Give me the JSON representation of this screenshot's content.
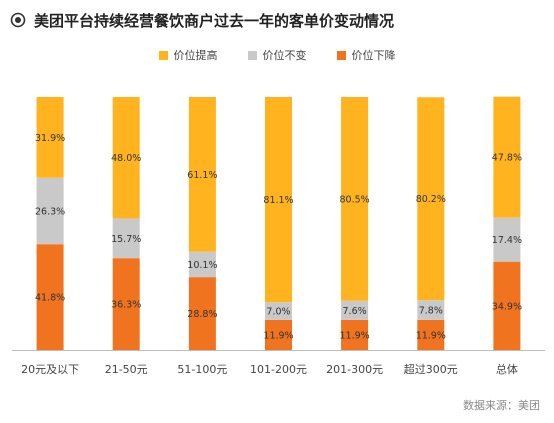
{
  "title": "美团平台持续经营餐饮商户过去一年的客单价变动情况",
  "source": "数据来源：美团",
  "colors": {
    "up": "#FFB41F",
    "same": "#C9C9C9",
    "down": "#F07420",
    "title_icon": "#333333"
  },
  "chart_data": {
    "type": "bar",
    "stacked": true,
    "percent": true,
    "categories": [
      "20元及以下",
      "21-50元",
      "51-100元",
      "101-200元",
      "201-300元",
      "超过300元",
      "总体"
    ],
    "series": [
      {
        "name": "价位提高",
        "values": [
          31.9,
          48.0,
          61.1,
          81.1,
          80.5,
          80.2,
          47.8
        ],
        "labels": [
          "31.9%",
          "48.0%",
          "61.1%",
          "81.1%",
          "80.5%",
          "80.2%",
          "47.8%"
        ]
      },
      {
        "name": "价位不变",
        "values": [
          26.3,
          15.7,
          10.1,
          7.0,
          7.6,
          7.8,
          17.4
        ],
        "labels": [
          "26.3%",
          "15.7%",
          "10.1%",
          "7.0%",
          "7.6%",
          "7.8%",
          "17.4%"
        ]
      },
      {
        "name": "价位下降",
        "values": [
          41.8,
          36.3,
          28.8,
          11.9,
          11.9,
          11.9,
          34.9
        ],
        "labels": [
          "41.8%",
          "36.3%",
          "28.8%",
          "11.9%",
          "11.9%",
          "11.9%",
          "34.9%"
        ]
      }
    ],
    "legend_position": "top",
    "ylim": [
      0,
      100
    ],
    "grid": false
  }
}
